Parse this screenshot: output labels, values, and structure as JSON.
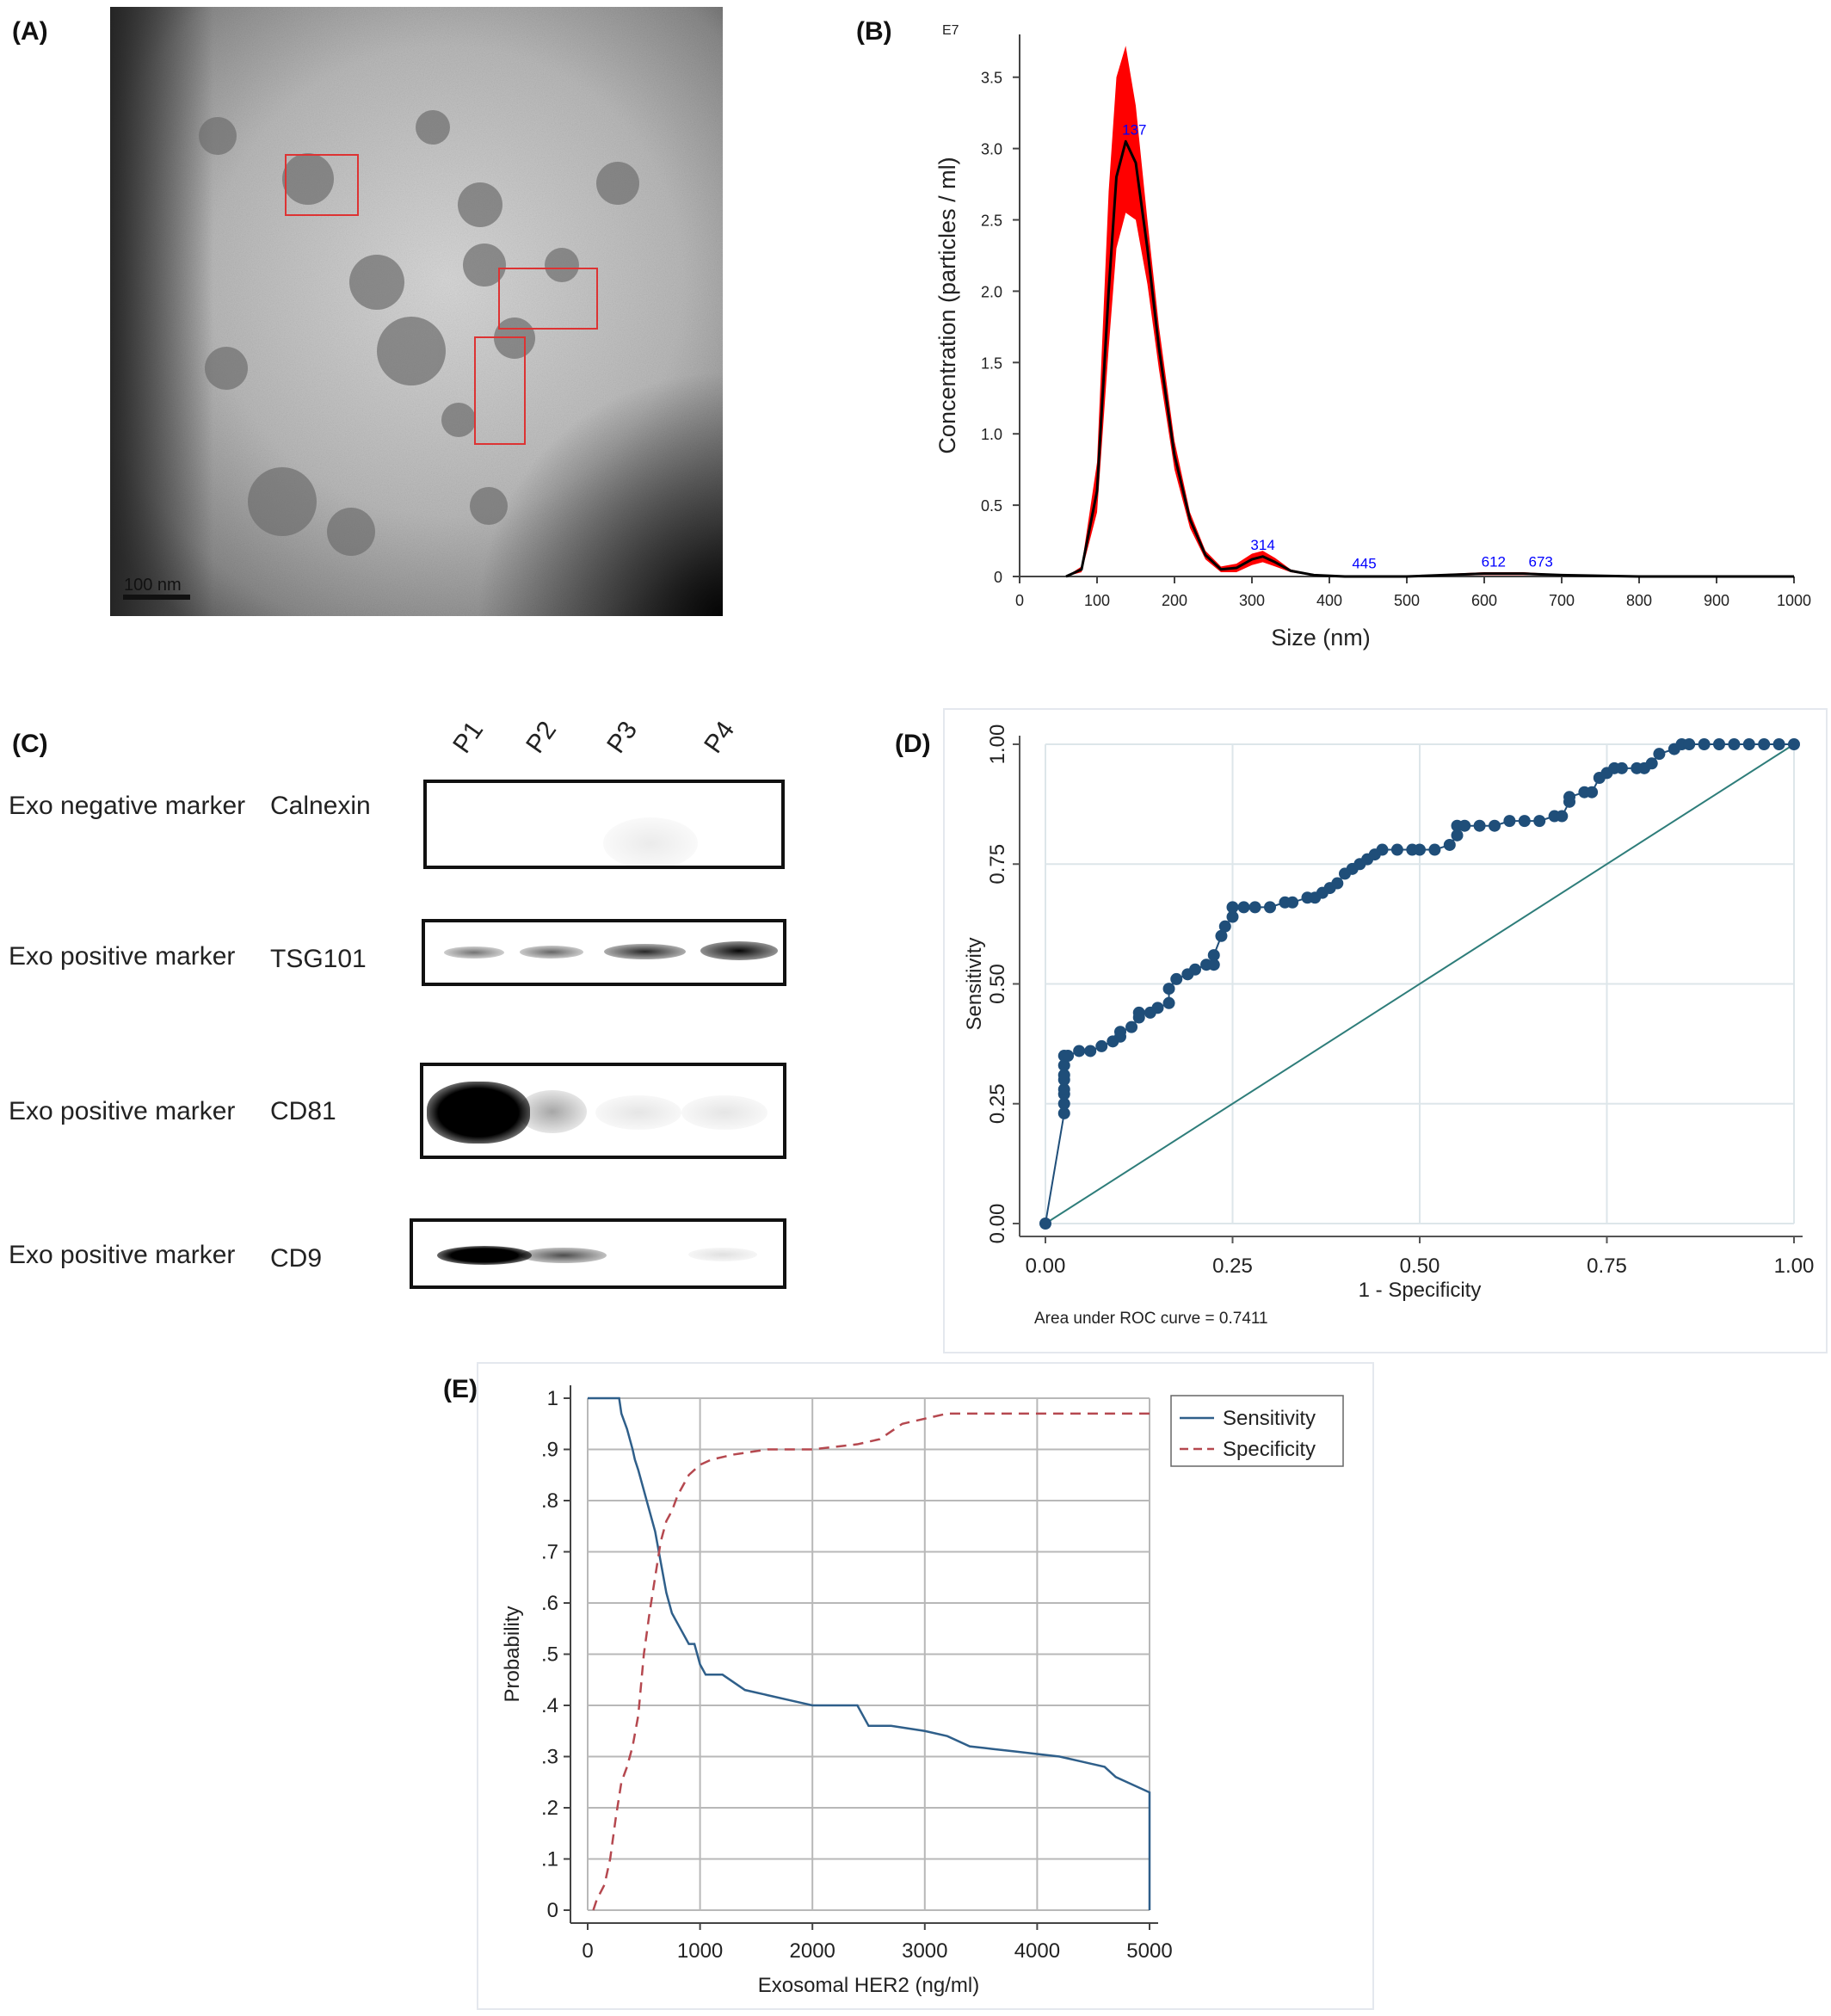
{
  "panels": {
    "a": {
      "label": "(A)",
      "scale_bar": "100 nm"
    },
    "b": {
      "label": "(B)"
    },
    "c": {
      "label": "(C)"
    },
    "d": {
      "label": "(D)"
    },
    "e": {
      "label": "(E)"
    }
  },
  "western_blot": {
    "lanes": [
      "P1",
      "P2",
      "P3",
      "P4"
    ],
    "rows": [
      {
        "category": "Exo negative marker",
        "protein": "Calnexin",
        "band_intensity": [
          0,
          0,
          0.05,
          0
        ]
      },
      {
        "category": "Exo positive marker",
        "protein": "TSG101",
        "band_intensity": [
          0.45,
          0.5,
          0.8,
          0.95
        ]
      },
      {
        "category": "Exo positive marker",
        "protein": "CD81",
        "band_intensity": [
          1.0,
          0.25,
          0.08,
          0.08
        ]
      },
      {
        "category": "Exo positive marker",
        "protein": "CD9",
        "band_intensity": [
          0.95,
          0.5,
          0,
          0.1
        ]
      }
    ]
  },
  "chart_data": [
    {
      "id": "B",
      "type": "area",
      "exponent_label": "E7",
      "xlabel": "Size (nm)",
      "ylabel": "Concentration (particles / ml)",
      "xlim": [
        0,
        1000
      ],
      "ylim": [
        0,
        3.8
      ],
      "xticks": [
        0,
        100,
        200,
        300,
        400,
        500,
        600,
        700,
        800,
        900,
        1000
      ],
      "yticks": [
        0,
        0.5,
        1.0,
        1.5,
        2.0,
        2.5,
        3.0,
        3.5
      ],
      "ytick_labels": [
        "0",
        "0.5",
        "1.0",
        "1.5",
        "2.0",
        "2.5",
        "3.0",
        "3.5"
      ],
      "series": [
        {
          "x": [
            60,
            80,
            100,
            115,
            125,
            137,
            150,
            165,
            180,
            200,
            220,
            240,
            260,
            280,
            300,
            314,
            330,
            350,
            380,
            420,
            500,
            600,
            650,
            700,
            800,
            1000
          ],
          "mean": [
            0.0,
            0.05,
            0.6,
            2.0,
            2.8,
            3.05,
            2.9,
            2.3,
            1.6,
            0.85,
            0.4,
            0.15,
            0.05,
            0.06,
            0.12,
            0.14,
            0.1,
            0.04,
            0.01,
            0.0,
            0.0,
            0.02,
            0.02,
            0.01,
            0.0,
            0.0
          ],
          "upper": [
            0.0,
            0.07,
            0.8,
            2.7,
            3.5,
            3.72,
            3.3,
            2.5,
            1.75,
            0.95,
            0.45,
            0.18,
            0.07,
            0.09,
            0.16,
            0.18,
            0.13,
            0.05,
            0.015,
            0.005,
            0.005,
            0.03,
            0.03,
            0.015,
            0.005,
            0.0
          ],
          "lower": [
            0.0,
            0.03,
            0.45,
            1.6,
            2.3,
            2.55,
            2.5,
            2.05,
            1.45,
            0.75,
            0.34,
            0.12,
            0.03,
            0.03,
            0.08,
            0.1,
            0.07,
            0.03,
            0.005,
            0.0,
            0.0,
            0.01,
            0.01,
            0.005,
            0.0,
            0.0
          ]
        }
      ],
      "peak_labels": [
        {
          "x": 137,
          "y": 3.05,
          "text": "137"
        },
        {
          "x": 314,
          "y": 0.14,
          "text": "314"
        },
        {
          "x": 445,
          "y": 0.01,
          "text": "445"
        },
        {
          "x": 612,
          "y": 0.02,
          "text": "612"
        },
        {
          "x": 673,
          "y": 0.02,
          "text": "673"
        }
      ],
      "colors": {
        "band": "#ff0000",
        "mean": "#000000",
        "peak_label": "#0000ff"
      }
    },
    {
      "id": "D",
      "type": "line",
      "xlabel": "1 - Specificity",
      "ylabel": "Sensitivity",
      "xlim": [
        0,
        1
      ],
      "ylim": [
        0,
        1
      ],
      "xticks": [
        0,
        0.25,
        0.5,
        0.75,
        1.0
      ],
      "xtick_labels": [
        "0.00",
        "0.25",
        "0.50",
        "0.75",
        "1.00"
      ],
      "yticks": [
        0,
        0.25,
        0.5,
        0.75,
        1.0
      ],
      "ytick_labels": [
        "0.00",
        "0.25",
        "0.50",
        "0.75",
        "1.00"
      ],
      "annotation": "Area under ROC curve = 0.7411",
      "roc_x": [
        0,
        0.025,
        0.025,
        0.025,
        0.025,
        0.025,
        0.025,
        0.025,
        0.025,
        0.03,
        0.045,
        0.06,
        0.075,
        0.09,
        0.1,
        0.1,
        0.115,
        0.125,
        0.125,
        0.14,
        0.15,
        0.165,
        0.165,
        0.175,
        0.19,
        0.2,
        0.215,
        0.225,
        0.225,
        0.235,
        0.24,
        0.25,
        0.25,
        0.265,
        0.28,
        0.3,
        0.32,
        0.33,
        0.35,
        0.36,
        0.37,
        0.38,
        0.39,
        0.4,
        0.41,
        0.42,
        0.43,
        0.44,
        0.45,
        0.47,
        0.49,
        0.5,
        0.52,
        0.54,
        0.55,
        0.55,
        0.56,
        0.58,
        0.6,
        0.62,
        0.64,
        0.66,
        0.68,
        0.69,
        0.7,
        0.7,
        0.72,
        0.73,
        0.74,
        0.75,
        0.76,
        0.77,
        0.79,
        0.8,
        0.81,
        0.82,
        0.84,
        0.85,
        0.86,
        0.88,
        0.9,
        0.92,
        0.94,
        0.96,
        0.98,
        1.0
      ],
      "roc_y": [
        0,
        0.23,
        0.25,
        0.27,
        0.28,
        0.3,
        0.31,
        0.33,
        0.35,
        0.35,
        0.36,
        0.36,
        0.37,
        0.38,
        0.39,
        0.4,
        0.41,
        0.43,
        0.44,
        0.44,
        0.45,
        0.46,
        0.49,
        0.51,
        0.52,
        0.53,
        0.54,
        0.54,
        0.56,
        0.6,
        0.62,
        0.64,
        0.66,
        0.66,
        0.66,
        0.66,
        0.67,
        0.67,
        0.68,
        0.68,
        0.69,
        0.7,
        0.71,
        0.73,
        0.74,
        0.75,
        0.76,
        0.77,
        0.78,
        0.78,
        0.78,
        0.78,
        0.78,
        0.79,
        0.81,
        0.83,
        0.83,
        0.83,
        0.83,
        0.84,
        0.84,
        0.84,
        0.85,
        0.85,
        0.88,
        0.89,
        0.9,
        0.9,
        0.93,
        0.94,
        0.95,
        0.95,
        0.95,
        0.95,
        0.96,
        0.98,
        0.99,
        1.0,
        1.0,
        1.0,
        1.0,
        1.0,
        1.0,
        1.0,
        1.0,
        1.0
      ],
      "reference_line": [
        [
          0,
          0
        ],
        [
          1,
          1
        ]
      ],
      "colors": {
        "roc": "#1f4e79",
        "reference": "#2e7d7a",
        "grid": "#dde6ea"
      }
    },
    {
      "id": "E",
      "type": "line",
      "xlabel": "Exosomal HER2 (ng/ml)",
      "ylabel": "Probability",
      "xlim": [
        0,
        5000
      ],
      "ylim": [
        0,
        1
      ],
      "xticks": [
        0,
        1000,
        2000,
        3000,
        4000,
        5000
      ],
      "xtick_labels": [
        "0",
        "1000",
        "2000",
        "3000",
        "4000",
        "5000"
      ],
      "yticks": [
        0,
        0.1,
        0.2,
        0.3,
        0.4,
        0.5,
        0.6,
        0.7,
        0.8,
        0.9,
        1.0
      ],
      "ytick_labels": [
        "0",
        ".1",
        ".2",
        ".3",
        ".4",
        ".5",
        ".6",
        ".7",
        ".8",
        ".9",
        "1"
      ],
      "legend": {
        "position": "top-right"
      },
      "series": [
        {
          "name": "Sensitivity",
          "style": "solid",
          "color": "#2f5f8a",
          "x": [
            0,
            280,
            300,
            350,
            400,
            420,
            450,
            500,
            550,
            600,
            650,
            700,
            750,
            800,
            850,
            900,
            950,
            1000,
            1050,
            1200,
            1400,
            1600,
            1800,
            2000,
            2200,
            2400,
            2500,
            2700,
            3000,
            3200,
            3400,
            3600,
            3800,
            4000,
            4200,
            4400,
            4600,
            4700,
            4800,
            5000,
            5000
          ],
          "y": [
            1.0,
            1.0,
            0.97,
            0.94,
            0.9,
            0.88,
            0.86,
            0.82,
            0.78,
            0.74,
            0.68,
            0.62,
            0.58,
            0.56,
            0.54,
            0.52,
            0.52,
            0.48,
            0.46,
            0.46,
            0.43,
            0.42,
            0.41,
            0.4,
            0.4,
            0.4,
            0.36,
            0.36,
            0.35,
            0.34,
            0.32,
            0.315,
            0.31,
            0.305,
            0.3,
            0.29,
            0.28,
            0.26,
            0.25,
            0.23,
            0.0
          ]
        },
        {
          "name": "Specificity",
          "style": "dashed",
          "color": "#b5484f",
          "x": [
            50,
            80,
            150,
            200,
            250,
            300,
            350,
            400,
            450,
            500,
            550,
            600,
            650,
            700,
            750,
            800,
            850,
            900,
            950,
            1000,
            1100,
            1300,
            1600,
            2000,
            2400,
            2600,
            2800,
            3000,
            3200,
            3500,
            4000,
            5000
          ],
          "y": [
            0.0,
            0.02,
            0.05,
            0.1,
            0.18,
            0.25,
            0.28,
            0.32,
            0.38,
            0.5,
            0.58,
            0.65,
            0.72,
            0.76,
            0.78,
            0.81,
            0.83,
            0.85,
            0.86,
            0.87,
            0.88,
            0.89,
            0.9,
            0.9,
            0.91,
            0.92,
            0.95,
            0.96,
            0.97,
            0.97,
            0.97,
            0.97
          ]
        }
      ],
      "colors": {
        "grid": "#b8b8b8"
      }
    }
  ]
}
